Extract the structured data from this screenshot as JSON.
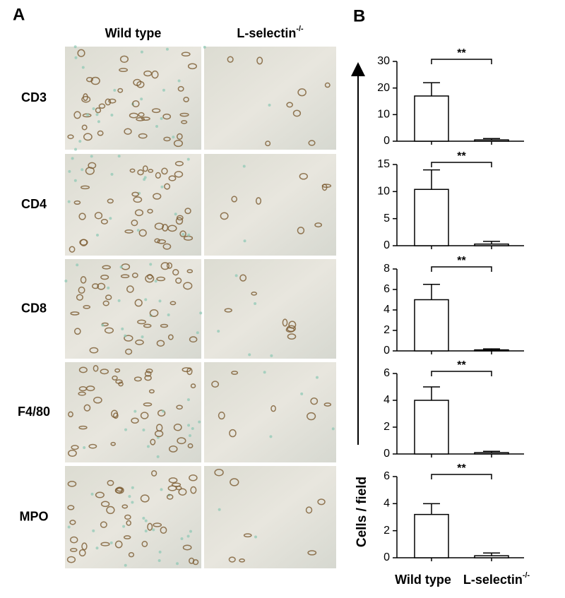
{
  "panel_a": {
    "label": "A",
    "columns": [
      {
        "text": "Wild type"
      },
      {
        "text": "L-selectin",
        "sup": "-/-"
      }
    ],
    "rows": [
      "CD3",
      "CD4",
      "CD8",
      "F4/80",
      "MPO"
    ]
  },
  "panel_b": {
    "label": "B",
    "ylabel": "Cells / field",
    "categories": [
      {
        "text": "Wild type"
      },
      {
        "text": "L-selectin",
        "sup": "-/-"
      }
    ]
  },
  "chart_data": [
    {
      "type": "bar",
      "values": [
        17,
        0.5
      ],
      "errors": [
        5,
        0.5
      ],
      "ylim": [
        0,
        30
      ],
      "yticks": [
        0,
        10,
        20,
        30
      ],
      "annotation": "**",
      "color": "#ffffff"
    },
    {
      "type": "bar",
      "values": [
        10.4,
        0.3
      ],
      "errors": [
        3.6,
        0.5
      ],
      "ylim": [
        0,
        15
      ],
      "yticks": [
        0,
        5,
        10,
        15
      ],
      "annotation": "**",
      "color": "#ffffff"
    },
    {
      "type": "bar",
      "values": [
        5,
        0.1
      ],
      "errors": [
        1.5,
        0.1
      ],
      "ylim": [
        0,
        8
      ],
      "yticks": [
        0,
        2,
        4,
        6,
        8
      ],
      "annotation": "**",
      "color": "#ffffff"
    },
    {
      "type": "bar",
      "values": [
        4,
        0.1
      ],
      "errors": [
        1,
        0.1
      ],
      "ylim": [
        0,
        6
      ],
      "yticks": [
        0,
        2,
        4,
        6
      ],
      "annotation": "**",
      "color": "#ffffff"
    },
    {
      "type": "bar",
      "values": [
        3.2,
        0.15
      ],
      "errors": [
        0.8,
        0.2
      ],
      "ylim": [
        0,
        6
      ],
      "yticks": [
        0,
        2,
        4,
        6
      ],
      "annotation": "**",
      "color": "#ffffff"
    }
  ]
}
